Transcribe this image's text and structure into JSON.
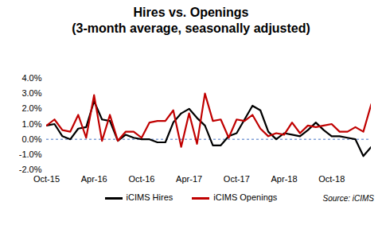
{
  "chart_data": {
    "type": "line",
    "title": "Hires vs. Openings",
    "subtitle": "(3-month average, seasonally adjusted)",
    "source": "Source: iCIMS",
    "categories": [
      "Oct-15",
      null,
      null,
      null,
      null,
      null,
      "Apr-16",
      null,
      null,
      null,
      null,
      null,
      "Oct-16",
      null,
      null,
      null,
      null,
      null,
      "Apr-17",
      null,
      null,
      null,
      null,
      null,
      "Oct-17",
      null,
      null,
      null,
      null,
      null,
      "Apr-18",
      null,
      null,
      null,
      null,
      null,
      "Oct-18",
      null,
      null,
      null,
      null,
      null
    ],
    "series": [
      {
        "name": "iCIMS Hires",
        "color": "#000000",
        "values": [
          0.9,
          1.0,
          0.2,
          0.0,
          0.7,
          0.8,
          2.5,
          1.3,
          1.2,
          -0.1,
          0.3,
          0.1,
          0.0,
          0.0,
          -0.2,
          -0.2,
          1.1,
          1.7,
          2.0,
          1.4,
          0.9,
          -0.4,
          -0.4,
          0.2,
          0.4,
          1.3,
          2.2,
          1.9,
          0.5,
          0.0,
          0.4,
          0.3,
          0.2,
          0.6,
          1.1,
          0.6,
          0.2,
          0.2,
          0.1,
          0.0,
          -1.1,
          -0.5
        ]
      },
      {
        "name": "iCIMS Openings",
        "color": "#c00000",
        "values": [
          0.9,
          1.3,
          0.6,
          0.5,
          1.6,
          0.1,
          2.9,
          -0.1,
          1.6,
          -0.1,
          0.5,
          0.5,
          0.1,
          1.1,
          1.2,
          1.2,
          1.9,
          -0.5,
          1.7,
          -0.3,
          3.0,
          1.2,
          1.3,
          0.1,
          1.3,
          1.2,
          1.6,
          0.7,
          0.2,
          0.4,
          0.3,
          1.1,
          0.4,
          0.9,
          0.8,
          0.9,
          1.0,
          0.5,
          0.5,
          0.8,
          0.5,
          2.3
        ]
      }
    ],
    "ylim": [
      -2,
      4
    ],
    "yticks": [
      {
        "value": -2,
        "label": "-2.0%"
      },
      {
        "value": -1,
        "label": "-1.0%"
      },
      {
        "value": 0,
        "label": "0.0%"
      },
      {
        "value": 1,
        "label": "1.0%"
      },
      {
        "value": 2,
        "label": "2.0%"
      },
      {
        "value": 3,
        "label": "3.0%"
      },
      {
        "value": 4,
        "label": "4.0%"
      }
    ],
    "grid": false,
    "legend": "bottom"
  }
}
